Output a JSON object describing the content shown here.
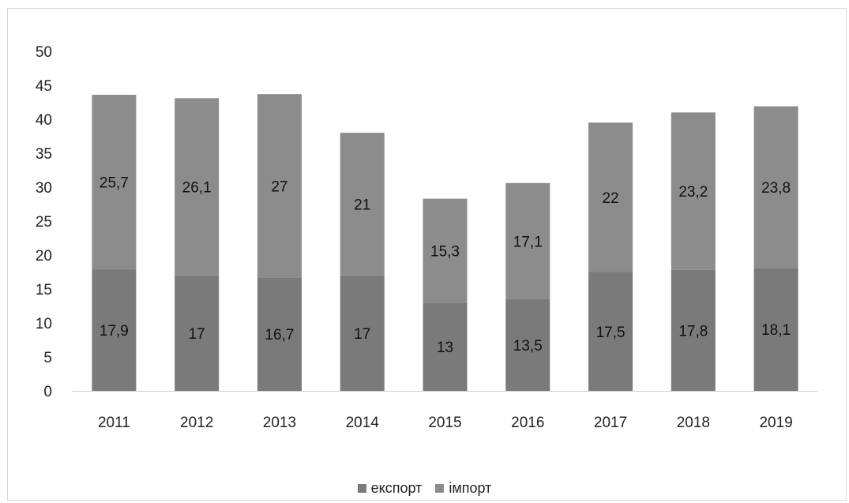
{
  "chart_data": {
    "type": "bar",
    "stacked": true,
    "categories": [
      "2011",
      "2012",
      "2013",
      "2014",
      "2015",
      "2016",
      "2017",
      "2018",
      "2019"
    ],
    "series": [
      {
        "name": "експорт",
        "values": [
          17.9,
          17,
          16.7,
          17,
          13,
          13.5,
          17.5,
          17.8,
          18.1
        ],
        "labels": [
          "17,9",
          "17",
          "16,7",
          "17",
          "13",
          "13,5",
          "17,5",
          "17,8",
          "18,1"
        ],
        "color": "#7a7a7a"
      },
      {
        "name": "імпорт",
        "values": [
          25.7,
          26.1,
          27,
          21,
          15.3,
          17.1,
          22,
          23.2,
          23.8
        ],
        "labels": [
          "25,7",
          "26,1",
          "27",
          "21",
          "15,3",
          "17,1",
          "22",
          "23,2",
          "23,8"
        ],
        "color": "#8c8c8c"
      }
    ],
    "ylim": [
      0,
      50
    ],
    "yticks": [
      "0",
      "5",
      "10",
      "15",
      "20",
      "25",
      "30",
      "35",
      "40",
      "45",
      "50"
    ],
    "grid": false,
    "legend": "bottom",
    "title": "",
    "xlabel": "",
    "ylabel": ""
  }
}
